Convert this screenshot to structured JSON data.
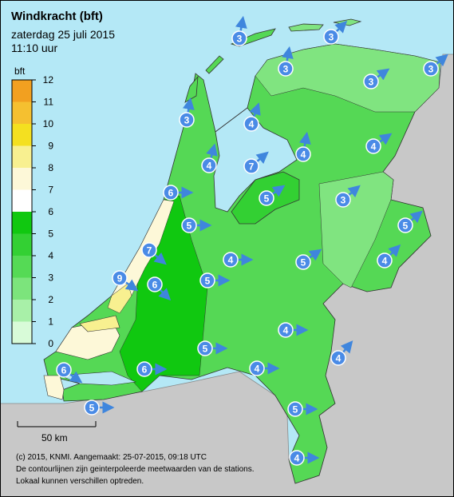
{
  "header": {
    "title": "Windkracht (bft)",
    "date": "zaterdag 25 juli 2015",
    "time": "11:10 uur"
  },
  "legend": {
    "unit": "bft",
    "ticks": [
      0,
      1,
      2,
      3,
      4,
      5,
      6,
      7,
      8,
      9,
      10,
      11,
      12
    ],
    "colors": [
      "#d8fbd8",
      "#a8f0a8",
      "#7ce47c",
      "#55da55",
      "#33d033",
      "#10c810",
      "#ffffff",
      "#fdf8d8",
      "#f8f090",
      "#f4e020",
      "#f5c030",
      "#f2a020",
      "#ee7e00"
    ]
  },
  "stations": [
    3,
    3,
    3,
    3,
    3,
    3,
    4,
    4,
    4,
    7,
    4,
    6,
    5,
    3,
    5,
    5,
    7,
    4,
    5,
    4,
    9,
    6,
    5,
    4,
    5,
    4,
    4,
    6,
    6,
    5,
    5,
    4
  ],
  "scale_bar": "50 km",
  "footer": [
    "(c) 2015, KNMI. Aangemaakt: 25-07-2015, 09:18 UTC",
    "De contourlijnen zijn geinterpoleerde meetwaarden van de stations.",
    "Lokaal kunnen verschillen optreden."
  ]
}
